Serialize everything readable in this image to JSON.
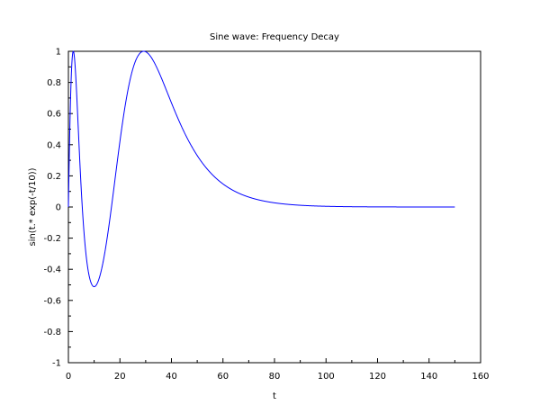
{
  "chart_data": {
    "type": "line",
    "title": "Sine wave: Frequency Decay",
    "xlabel": "t",
    "ylabel": "sin(t.* exp(-t/10))",
    "xlim": [
      0,
      160
    ],
    "ylim": [
      -1,
      1
    ],
    "x_ticks": [
      "0",
      "20",
      "40",
      "60",
      "80",
      "100",
      "120",
      "140",
      "160"
    ],
    "y_ticks": [
      "-1",
      "-0.8",
      "-0.6",
      "-0.4",
      "-0.2",
      "0",
      "0.2",
      "0.4",
      "0.6",
      "0.8",
      "1"
    ],
    "grid": false,
    "legend": "none",
    "series": [
      {
        "function": "sin(t .* exp(-t/10))",
        "x_start": 0,
        "x_end": 150,
        "color": "#0000ff"
      }
    ]
  }
}
